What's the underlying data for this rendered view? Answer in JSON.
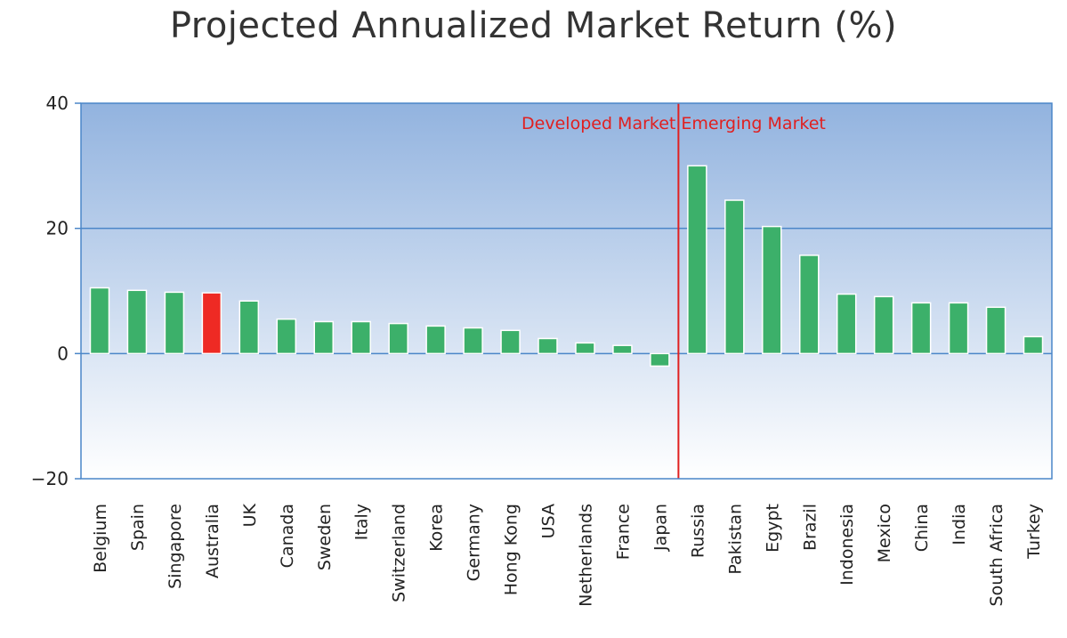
{
  "chart_data": {
    "type": "bar",
    "title": "Projected Annualized Market Return (%)",
    "xlabel": "",
    "ylabel": "",
    "ylim": [
      -20,
      40
    ],
    "yticks": [
      40,
      20,
      0,
      -20
    ],
    "grid": true,
    "categories": [
      "Belgium",
      "Spain",
      "Singapore",
      "Australia",
      "UK",
      "Canada",
      "Sweden",
      "Italy",
      "Switzerland",
      "Korea",
      "Germany",
      "Hong Kong",
      "USA",
      "Netherlands",
      "France",
      "Japan",
      "Russia",
      "Pakistan",
      "Egypt",
      "Brazil",
      "Indonesia",
      "Mexico",
      "China",
      "India",
      "South Africa",
      "Turkey"
    ],
    "values": [
      10.5,
      10.1,
      9.8,
      9.7,
      8.4,
      5.5,
      5.1,
      5.1,
      4.8,
      4.4,
      4.1,
      3.7,
      2.4,
      1.7,
      1.3,
      -2.0,
      30.0,
      24.5,
      20.3,
      15.7,
      9.5,
      9.1,
      8.1,
      8.1,
      7.4,
      2.7
    ],
    "highlight": {
      "category": "Australia",
      "color": "#ee2a24"
    },
    "bar_color": "#3cb06a",
    "divider": {
      "after_category": "Japan",
      "color": "#e02020"
    },
    "annotations": {
      "left_label": "Developed Market",
      "right_label": "Emerging Market",
      "color": "#e02020"
    },
    "plot_colors": {
      "top": "#92b3df",
      "bottom": "#ffffff",
      "border": "#4a86c8",
      "grid": "#4a86c8"
    }
  }
}
